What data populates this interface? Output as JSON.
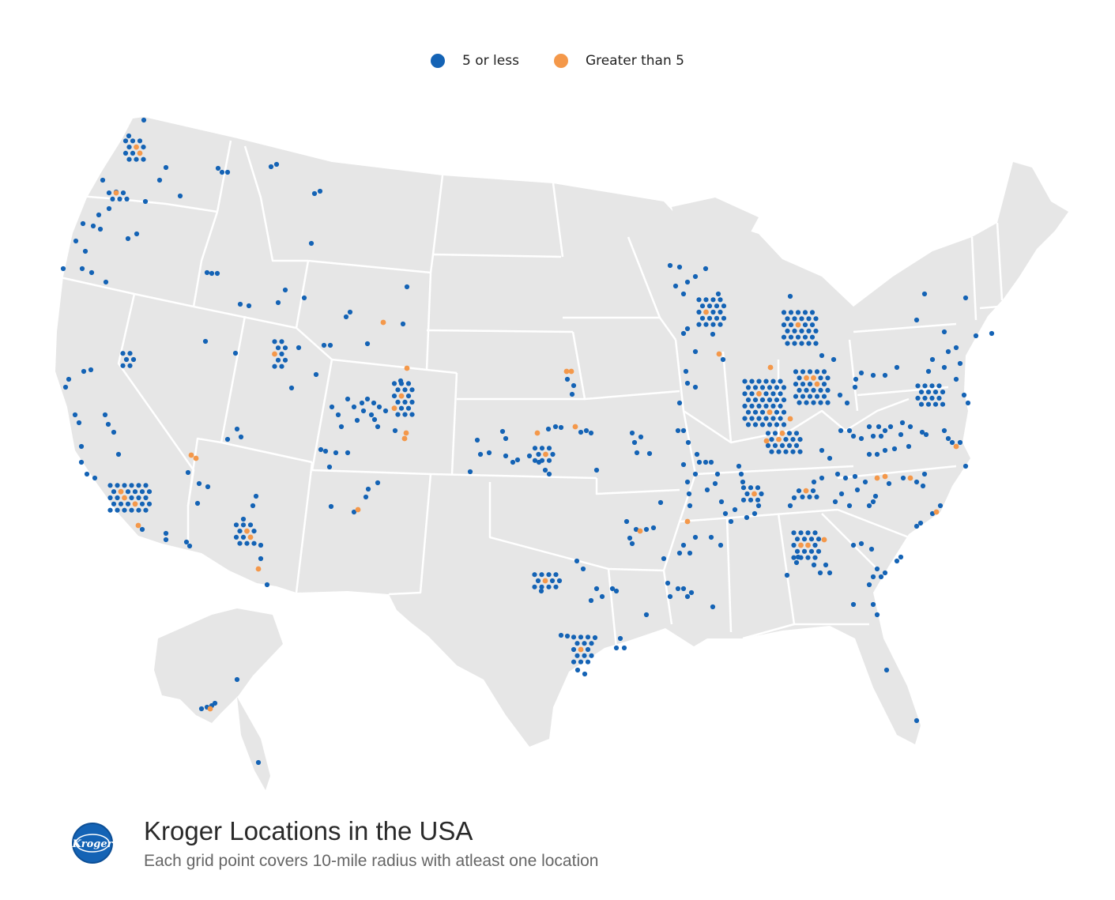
{
  "legend": {
    "items": [
      {
        "label": "5 or less",
        "color": "#1463b5"
      },
      {
        "label": "Greater than 5",
        "color": "#f4984a"
      }
    ]
  },
  "map": {
    "land_color": "#e6e6e6",
    "border_color": "#ffffff",
    "low_color": "#1463b5",
    "high_color": "#f4984a"
  },
  "footer": {
    "title": "Kroger Locations in the USA",
    "subtitle": "Each grid point covers 10-mile radius with atleast one location",
    "logo_text": "Kroger",
    "logo_color": "#1463b5"
  }
}
